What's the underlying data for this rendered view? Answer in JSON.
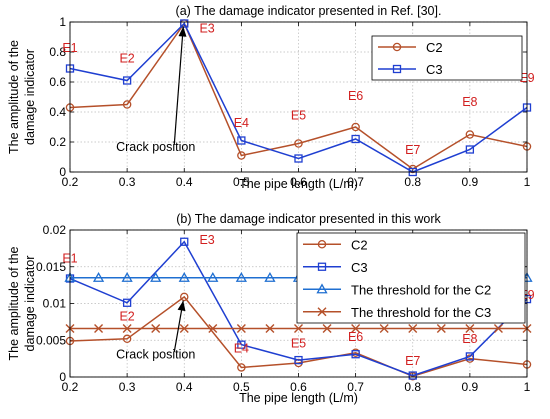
{
  "chart_data": [
    {
      "type": "line",
      "title": "(a) The damage indicator presented in Ref. [30].",
      "xlabel": "The pipe length (L/m)",
      "ylabel": [
        "The amplitude of the",
        "damage indicator"
      ],
      "xlim": [
        0.2,
        1.0
      ],
      "ylim": [
        0,
        1
      ],
      "xticks": [
        0.2,
        0.3,
        0.4,
        0.5,
        0.6,
        0.7,
        0.8,
        0.9,
        1
      ],
      "xtick_labels": [
        "0.2",
        "0.3",
        "0.4",
        "0.5",
        "0.6",
        "0.7",
        "0.8",
        "0.9",
        "1"
      ],
      "yticks": [
        0,
        0.2,
        0.4,
        0.6,
        0.8,
        1
      ],
      "ytick_labels": [
        "0",
        "0.2",
        "0.4",
        "0.6",
        "0.8",
        "1"
      ],
      "grid": true,
      "legend_position": "top-right",
      "x": [
        0.2,
        0.3,
        0.4,
        0.5,
        0.6,
        0.7,
        0.8,
        0.9,
        1.0
      ],
      "series": [
        {
          "name": "C2",
          "color": "#b5502a",
          "marker": "circle",
          "values": [
            0.43,
            0.45,
            0.99,
            0.11,
            0.19,
            0.3,
            0.02,
            0.25,
            0.17
          ]
        },
        {
          "name": "C3",
          "color": "#1f3fd1",
          "marker": "square",
          "values": [
            0.69,
            0.61,
            0.99,
            0.21,
            0.09,
            0.22,
            0.0,
            0.15,
            0.43
          ]
        }
      ],
      "point_labels": [
        {
          "text": "E1",
          "x": 0.2,
          "y": 0.8
        },
        {
          "text": "E2",
          "x": 0.3,
          "y": 0.73
        },
        {
          "text": "E3",
          "x": 0.44,
          "y": 0.93
        },
        {
          "text": "E4",
          "x": 0.5,
          "y": 0.3
        },
        {
          "text": "E5",
          "x": 0.6,
          "y": 0.35
        },
        {
          "text": "E6",
          "x": 0.7,
          "y": 0.48
        },
        {
          "text": "E7",
          "x": 0.8,
          "y": 0.12
        },
        {
          "text": "E8",
          "x": 0.9,
          "y": 0.44
        },
        {
          "text": "E9",
          "x": 1.0,
          "y": 0.6
        }
      ],
      "annotation": {
        "text": "Crack position",
        "text_x": 0.35,
        "text_y": 0.14,
        "arrow_from_y": 0.18,
        "arrow_to_x": 0.4,
        "arrow_to_y": 0.99
      }
    },
    {
      "type": "line",
      "title": "(b) The damage indicator presented in this work",
      "xlabel": "The pipe length (L/m)",
      "ylabel": [
        "The amplitude of the",
        "damage indicator"
      ],
      "xlim": [
        0.2,
        1.0
      ],
      "ylim": [
        0,
        0.02
      ],
      "xticks": [
        0.2,
        0.3,
        0.4,
        0.5,
        0.6,
        0.7,
        0.8,
        0.9,
        1
      ],
      "xtick_labels": [
        "0.2",
        "0.3",
        "0.4",
        "0.5",
        "0.6",
        "0.7",
        "0.8",
        "0.9",
        "1"
      ],
      "yticks": [
        0,
        0.005,
        0.01,
        0.015,
        0.02
      ],
      "ytick_labels": [
        "0",
        "0.005",
        "0.01",
        "0.015",
        "0.02"
      ],
      "grid": true,
      "legend_position": "top-right",
      "x": [
        0.2,
        0.3,
        0.4,
        0.5,
        0.6,
        0.7,
        0.8,
        0.9,
        1.0
      ],
      "series": [
        {
          "name": "C2",
          "color": "#b5502a",
          "marker": "circle",
          "values": [
            0.0049,
            0.0052,
            0.0109,
            0.0013,
            0.0019,
            0.0033,
            0.0001,
            0.0025,
            0.0017
          ]
        },
        {
          "name": "C3",
          "color": "#1f3fd1",
          "marker": "square",
          "values": [
            0.0134,
            0.0101,
            0.0184,
            0.0044,
            0.0023,
            0.0031,
            0.0002,
            0.0028,
            0.0106
          ]
        },
        {
          "name": "The threshold for the C2",
          "color": "#1f6fd1",
          "marker": "triangle",
          "constant": 0.0135,
          "x": [
            0.2,
            0.25,
            0.3,
            0.35,
            0.4,
            0.45,
            0.5,
            0.55,
            0.6,
            0.65,
            0.7,
            0.75,
            0.8,
            0.85,
            0.9,
            0.95,
            1.0
          ]
        },
        {
          "name": "The threshold for the C3",
          "color": "#b5502a",
          "marker": "x",
          "constant": 0.0066,
          "x": [
            0.2,
            0.25,
            0.3,
            0.35,
            0.4,
            0.45,
            0.5,
            0.55,
            0.6,
            0.65,
            0.7,
            0.75,
            0.8,
            0.85,
            0.9,
            0.95,
            1.0
          ]
        }
      ],
      "point_labels": [
        {
          "text": "E1",
          "x": 0.2,
          "y": 0.0156
        },
        {
          "text": "E2",
          "x": 0.3,
          "y": 0.0077
        },
        {
          "text": "E3",
          "x": 0.44,
          "y": 0.0181
        },
        {
          "text": "E4",
          "x": 0.5,
          "y": 0.0033
        },
        {
          "text": "E5",
          "x": 0.6,
          "y": 0.004
        },
        {
          "text": "E6",
          "x": 0.7,
          "y": 0.0049
        },
        {
          "text": "E7",
          "x": 0.8,
          "y": 0.0016
        },
        {
          "text": "E8",
          "x": 0.9,
          "y": 0.0046
        },
        {
          "text": "E9",
          "x": 1.0,
          "y": 0.0106
        }
      ],
      "annotation": {
        "text": "Crack position",
        "text_x": 0.35,
        "text_y": 0.0025,
        "arrow_from_y": 0.0034,
        "arrow_to_x": 0.4,
        "arrow_to_y": 0.0108
      }
    }
  ]
}
